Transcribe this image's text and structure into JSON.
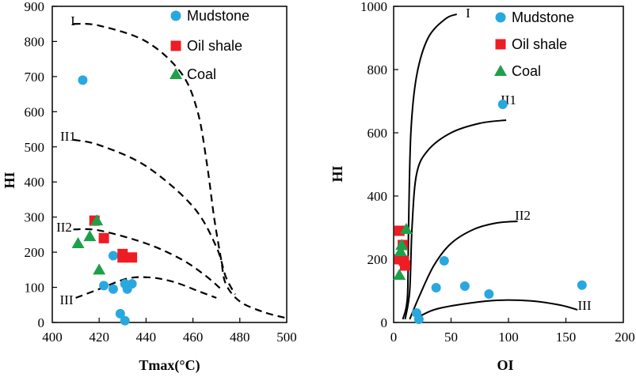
{
  "colors": {
    "mudstone": "#29a8e0",
    "oil_shale": "#ee1c24",
    "coal": "#1ea04a",
    "axis": "#000000"
  },
  "chart_data": [
    {
      "type": "scatter",
      "xlabel": "Tmax(°C)",
      "ylabel": "HI",
      "xlim": [
        400,
        500
      ],
      "ylim": [
        0,
        900
      ],
      "x_ticks": [
        "400",
        "420",
        "440",
        "460",
        "480",
        "500"
      ],
      "y_ticks": [
        "0",
        "100",
        "200",
        "300",
        "400",
        "500",
        "600",
        "700",
        "800",
        "900"
      ],
      "legend": [
        "Mudstone",
        "Oil shale",
        "Coal"
      ],
      "legend_position": "top-right",
      "series": [
        {
          "name": "Mudstone",
          "marker": "circle",
          "points": [
            [
              413,
              690
            ],
            [
              426,
              190
            ],
            [
              422,
              105
            ],
            [
              426,
              95
            ],
            [
              432,
              95
            ],
            [
              431,
              110
            ],
            [
              434,
              110
            ],
            [
              429,
              25
            ],
            [
              431,
              5
            ]
          ]
        },
        {
          "name": "Oil shale",
          "marker": "square",
          "points": [
            [
              418,
              290
            ],
            [
              422,
              240
            ],
            [
              430,
              195
            ],
            [
              430,
              185
            ],
            [
              434,
              185
            ]
          ]
        },
        {
          "name": "Coal",
          "marker": "triangle",
          "points": [
            [
              419,
              290
            ],
            [
              416,
              245
            ],
            [
              411,
              225
            ],
            [
              420,
              150
            ]
          ]
        }
      ],
      "boundary_curves": [
        {
          "label": "I",
          "points": [
            [
              409,
              850
            ],
            [
              420,
              845
            ],
            [
              440,
              800
            ],
            [
              455,
              710
            ],
            [
              462,
              600
            ],
            [
              466,
              450
            ],
            [
              469,
              300
            ],
            [
              472,
              180
            ],
            [
              474,
              110
            ],
            [
              480,
              60
            ],
            [
              490,
              30
            ],
            [
              500,
              12
            ]
          ]
        },
        {
          "label": "II1",
          "points": [
            [
              409,
              520
            ],
            [
              420,
              505
            ],
            [
              440,
              445
            ],
            [
              460,
              330
            ],
            [
              470,
              215
            ],
            [
              474,
              130
            ],
            [
              478,
              80
            ]
          ]
        },
        {
          "label": "II2",
          "points": [
            [
              409,
              265
            ],
            [
              420,
              262
            ],
            [
              440,
              225
            ],
            [
              455,
              180
            ],
            [
              465,
              135
            ],
            [
              472,
              95
            ]
          ]
        },
        {
          "label": "III",
          "points": [
            [
              410,
              70
            ],
            [
              420,
              95
            ],
            [
              432,
              125
            ],
            [
              442,
              128
            ],
            [
              452,
              115
            ],
            [
              462,
              90
            ],
            [
              470,
              70
            ]
          ]
        }
      ],
      "curve_labels": [
        "I",
        "II1",
        "II2",
        "III"
      ]
    },
    {
      "type": "scatter",
      "xlabel": "OI",
      "ylabel": "HI",
      "xlim": [
        0,
        200
      ],
      "ylim": [
        0,
        1000
      ],
      "x_ticks": [
        "0",
        "50",
        "100",
        "150",
        "200"
      ],
      "y_ticks": [
        "0",
        "200",
        "400",
        "600",
        "800",
        "1000"
      ],
      "legend": [
        "Mudstone",
        "Oil shale",
        "Coal"
      ],
      "legend_position": "top-right",
      "series": [
        {
          "name": "Mudstone",
          "marker": "circle",
          "points": [
            [
              95,
              690
            ],
            [
              44,
              195
            ],
            [
              37,
              110
            ],
            [
              62,
              115
            ],
            [
              83,
              90
            ],
            [
              164,
              118
            ],
            [
              20,
              30
            ],
            [
              22,
              10
            ]
          ]
        },
        {
          "name": "Oil shale",
          "marker": "square",
          "points": [
            [
              5,
              290
            ],
            [
              8,
              245
            ],
            [
              5,
              200
            ],
            [
              9,
              195
            ],
            [
              10,
              180
            ]
          ]
        },
        {
          "name": "Coal",
          "marker": "triangle",
          "points": [
            [
              11,
              295
            ],
            [
              7,
              245
            ],
            [
              6,
              225
            ],
            [
              5,
              150
            ]
          ]
        }
      ],
      "boundary_curves": [
        {
          "label": "I",
          "points": [
            [
              8,
              10
            ],
            [
              12,
              80
            ],
            [
              13,
              300
            ],
            [
              15,
              600
            ],
            [
              20,
              780
            ],
            [
              30,
              900
            ],
            [
              45,
              960
            ],
            [
              55,
              975
            ]
          ]
        },
        {
          "label": "II1",
          "points": [
            [
              10,
              10
            ],
            [
              14,
              100
            ],
            [
              16,
              300
            ],
            [
              20,
              470
            ],
            [
              30,
              545
            ],
            [
              50,
              600
            ],
            [
              75,
              630
            ],
            [
              98,
              640
            ]
          ]
        },
        {
          "label": "II2",
          "points": [
            [
              14,
              10
            ],
            [
              22,
              80
            ],
            [
              35,
              180
            ],
            [
              50,
              250
            ],
            [
              70,
              295
            ],
            [
              90,
              315
            ],
            [
              108,
              320
            ]
          ]
        },
        {
          "label": "III",
          "points": [
            [
              18,
              10
            ],
            [
              35,
              40
            ],
            [
              60,
              58
            ],
            [
              90,
              70
            ],
            [
              120,
              68
            ],
            [
              145,
              55
            ],
            [
              160,
              40
            ]
          ]
        }
      ],
      "curve_labels": [
        "I",
        "II1",
        "II2",
        "III"
      ]
    }
  ]
}
